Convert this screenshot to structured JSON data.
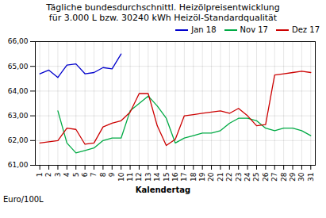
{
  "chart_data": {
    "type": "line",
    "title": "Tägliche bundesdurchschnittl. Heizölpreisentwicklung",
    "subtitle": "für 3.000 L bzw. 30240 kWh Heizöl-Standardqualität",
    "xlabel": "Kalendertag",
    "ylabel": "Euro/100L",
    "x": [
      1,
      2,
      3,
      4,
      5,
      6,
      7,
      8,
      9,
      10,
      11,
      12,
      13,
      14,
      15,
      16,
      17,
      18,
      19,
      20,
      21,
      22,
      23,
      24,
      25,
      26,
      27,
      28,
      29,
      30,
      31
    ],
    "series": [
      {
        "name": "Jan 18",
        "color": "#0000cc",
        "values": [
          64.7,
          64.85,
          64.55,
          65.05,
          65.1,
          64.7,
          64.75,
          64.95,
          64.9,
          65.5,
          null,
          null,
          null,
          null,
          null,
          null,
          null,
          null,
          null,
          null,
          null,
          null,
          null,
          null,
          null,
          null,
          null,
          null,
          null,
          null,
          null
        ]
      },
      {
        "name": "Nov 17",
        "color": "#00aa44",
        "values": [
          null,
          null,
          63.2,
          61.9,
          61.5,
          61.6,
          61.7,
          62.0,
          62.1,
          62.1,
          63.2,
          63.5,
          63.8,
          63.4,
          62.9,
          61.9,
          62.1,
          62.2,
          62.3,
          62.3,
          62.4,
          62.7,
          62.9,
          62.9,
          62.8,
          62.5,
          62.4,
          62.5,
          62.5,
          62.4,
          62.2
        ]
      },
      {
        "name": "Dez 17",
        "color": "#cc0000",
        "values": [
          61.9,
          61.95,
          62.0,
          62.5,
          62.45,
          61.85,
          61.9,
          62.55,
          62.7,
          62.8,
          63.15,
          63.9,
          63.9,
          62.6,
          61.8,
          62.05,
          63.0,
          63.05,
          63.1,
          63.15,
          63.2,
          63.1,
          63.3,
          63.0,
          62.6,
          62.65,
          64.65,
          64.7,
          64.75,
          64.8,
          64.75
        ]
      }
    ],
    "xlim": [
      0.5,
      31.5
    ],
    "xticks": [
      1,
      2,
      3,
      4,
      5,
      6,
      7,
      8,
      9,
      10,
      11,
      12,
      13,
      14,
      15,
      16,
      17,
      18,
      19,
      20,
      21,
      22,
      23,
      24,
      25,
      26,
      27,
      28,
      29,
      30,
      31
    ],
    "ylim": [
      61.0,
      66.0
    ],
    "yticks": [
      {
        "value": 61.0,
        "label": "61,00"
      },
      {
        "value": 62.0,
        "label": "62,00"
      },
      {
        "value": 63.0,
        "label": "63,00"
      },
      {
        "value": 64.0,
        "label": "64,00"
      },
      {
        "value": 65.0,
        "label": "65,00"
      },
      {
        "value": 66.0,
        "label": "66,00"
      }
    ],
    "grid": true,
    "legend": "upper right"
  }
}
